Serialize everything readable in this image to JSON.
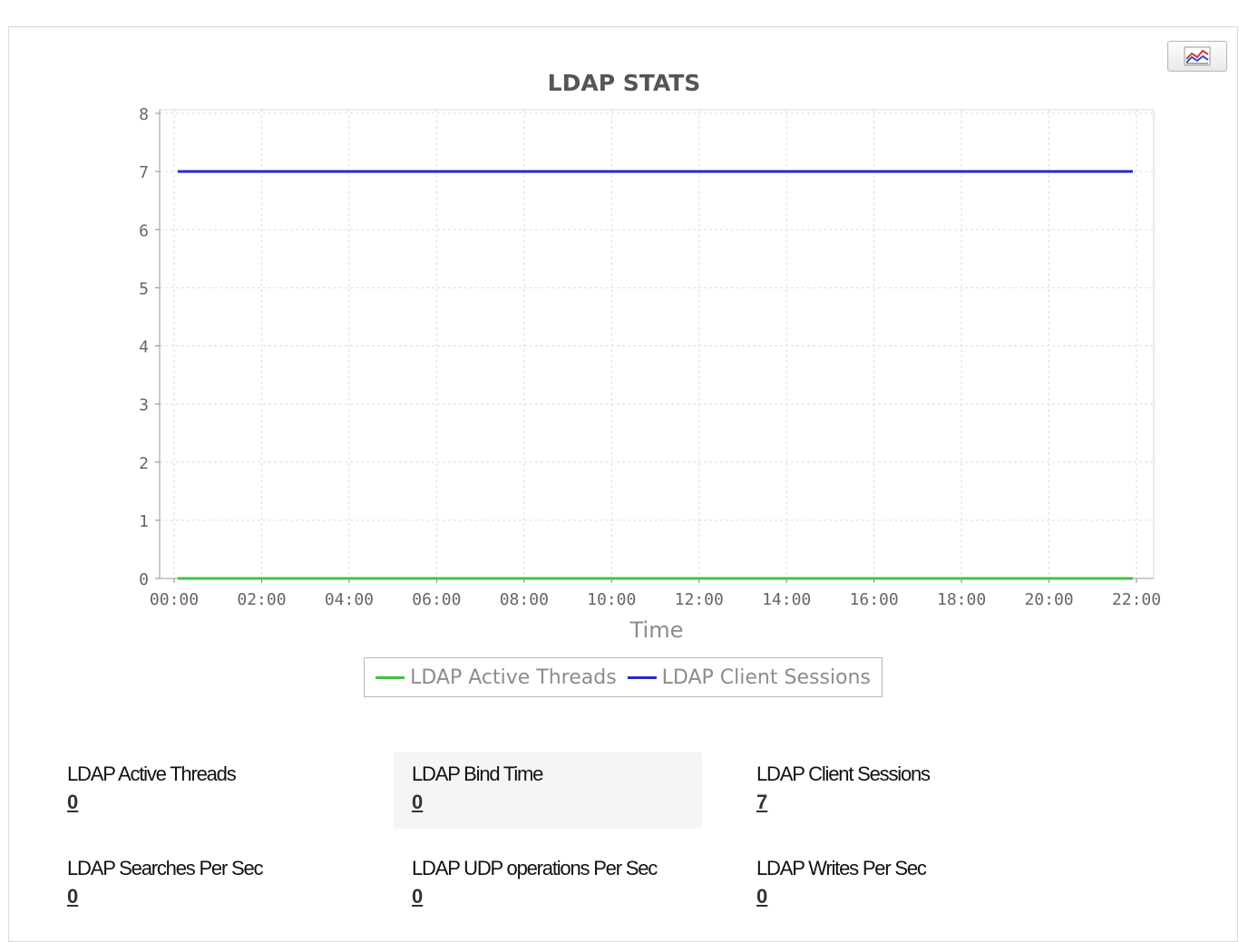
{
  "chart_data": {
    "type": "line",
    "title": "LDAP STATS",
    "xlabel": "Time",
    "ylabel": "",
    "x_ticks": [
      "00:00",
      "02:00",
      "04:00",
      "06:00",
      "08:00",
      "10:00",
      "12:00",
      "14:00",
      "16:00",
      "18:00",
      "20:00",
      "22:00"
    ],
    "y_ticks": [
      "0",
      "1",
      "2",
      "3",
      "4",
      "5",
      "6",
      "7",
      "8"
    ],
    "xlim": [
      "00:00",
      "22:00"
    ],
    "ylim": [
      0,
      8
    ],
    "grid": true,
    "legend_position": "bottom-center",
    "series": [
      {
        "name": "LDAP Active Threads",
        "color": "#44c144",
        "x": [
          "00:05",
          "21:55"
        ],
        "y": [
          0,
          0
        ]
      },
      {
        "name": "LDAP Client Sessions",
        "color": "#2929c8",
        "x": [
          "00:05",
          "21:55"
        ],
        "y": [
          7,
          7
        ]
      }
    ]
  },
  "chart_button_icon": "line-chart-icon",
  "metrics": [
    {
      "label": "LDAP Active Threads",
      "value": "0"
    },
    {
      "label": "LDAP Bind Time",
      "value": "0"
    },
    {
      "label": "LDAP Client Sessions",
      "value": "7"
    },
    {
      "label": "LDAP Searches Per Sec",
      "value": "0"
    },
    {
      "label": "LDAP UDP operations Per Sec",
      "value": "0"
    },
    {
      "label": "LDAP Writes Per Sec",
      "value": "0"
    }
  ]
}
